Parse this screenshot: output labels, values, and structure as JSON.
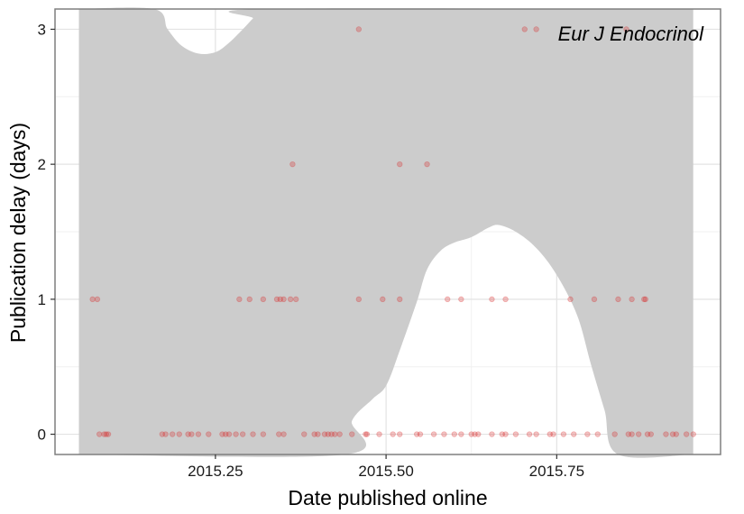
{
  "chart_data": {
    "type": "scatter",
    "title": "",
    "annotation": "Eur J Endocrinol",
    "xlabel": "Date published online",
    "ylabel": "Publication delay (days)",
    "xlim": [
      2015.015,
      2015.99
    ],
    "ylim": [
      -0.15,
      3.15
    ],
    "x_ticks": [
      2015.25,
      2015.5,
      2015.75
    ],
    "x_tick_labels": [
      "2015.25",
      "2015.50",
      "2015.75"
    ],
    "y_ticks": [
      0,
      1,
      2,
      3
    ],
    "y_tick_labels": [
      "0",
      "1",
      "2",
      "3"
    ],
    "grid": true,
    "point_color": "#d62728",
    "band_color": "#cccccc",
    "series": [
      {
        "points": [
          [
            2015.07,
            1
          ],
          [
            2015.077,
            1
          ],
          [
            2015.345,
            1
          ],
          [
            2015.285,
            1
          ],
          [
            2015.3,
            1
          ],
          [
            2015.32,
            1
          ],
          [
            2015.34,
            1
          ],
          [
            2015.35,
            1
          ],
          [
            2015.36,
            1
          ],
          [
            2015.368,
            1
          ],
          [
            2015.46,
            1
          ],
          [
            2015.495,
            1
          ],
          [
            2015.52,
            1
          ],
          [
            2015.59,
            1
          ],
          [
            2015.61,
            1
          ],
          [
            2015.655,
            1
          ],
          [
            2015.675,
            1
          ],
          [
            2015.77,
            1
          ],
          [
            2015.805,
            1
          ],
          [
            2015.84,
            1
          ],
          [
            2015.86,
            1
          ],
          [
            2015.878,
            1
          ],
          [
            2015.88,
            1
          ],
          [
            2015.363,
            2
          ],
          [
            2015.52,
            2
          ],
          [
            2015.56,
            2
          ],
          [
            2015.46,
            3
          ],
          [
            2015.703,
            3
          ],
          [
            2015.72,
            3
          ],
          [
            2015.852,
            3
          ],
          [
            2015.08,
            0
          ],
          [
            2015.087,
            0
          ],
          [
            2015.09,
            0
          ],
          [
            2015.093,
            0
          ],
          [
            2015.172,
            0
          ],
          [
            2015.177,
            0
          ],
          [
            2015.187,
            0
          ],
          [
            2015.197,
            0
          ],
          [
            2015.21,
            0
          ],
          [
            2015.215,
            0
          ],
          [
            2015.225,
            0
          ],
          [
            2015.24,
            0
          ],
          [
            2015.26,
            0
          ],
          [
            2015.265,
            0
          ],
          [
            2015.27,
            0
          ],
          [
            2015.28,
            0
          ],
          [
            2015.29,
            0
          ],
          [
            2015.305,
            0
          ],
          [
            2015.32,
            0
          ],
          [
            2015.343,
            0
          ],
          [
            2015.35,
            0
          ],
          [
            2015.38,
            0
          ],
          [
            2015.395,
            0
          ],
          [
            2015.4,
            0
          ],
          [
            2015.41,
            0
          ],
          [
            2015.415,
            0
          ],
          [
            2015.42,
            0
          ],
          [
            2015.425,
            0
          ],
          [
            2015.432,
            0
          ],
          [
            2015.45,
            0
          ],
          [
            2015.47,
            0
          ],
          [
            2015.472,
            0
          ],
          [
            2015.49,
            0
          ],
          [
            2015.51,
            0
          ],
          [
            2015.52,
            0
          ],
          [
            2015.545,
            0
          ],
          [
            2015.55,
            0
          ],
          [
            2015.57,
            0
          ],
          [
            2015.585,
            0
          ],
          [
            2015.6,
            0
          ],
          [
            2015.61,
            0
          ],
          [
            2015.625,
            0
          ],
          [
            2015.63,
            0
          ],
          [
            2015.635,
            0
          ],
          [
            2015.655,
            0
          ],
          [
            2015.67,
            0
          ],
          [
            2015.675,
            0
          ],
          [
            2015.69,
            0
          ],
          [
            2015.71,
            0
          ],
          [
            2015.72,
            0
          ],
          [
            2015.74,
            0
          ],
          [
            2015.745,
            0
          ],
          [
            2015.76,
            0
          ],
          [
            2015.775,
            0
          ],
          [
            2015.795,
            0
          ],
          [
            2015.81,
            0
          ],
          [
            2015.835,
            0
          ],
          [
            2015.855,
            0
          ],
          [
            2015.86,
            0
          ],
          [
            2015.87,
            0
          ],
          [
            2015.883,
            0
          ],
          [
            2015.888,
            0
          ],
          [
            2015.91,
            0
          ],
          [
            2015.92,
            0
          ],
          [
            2015.925,
            0
          ],
          [
            2015.94,
            0
          ],
          [
            2015.95,
            0
          ]
        ]
      }
    ],
    "band": {
      "x_range": [
        2015.05,
        2015.95
      ],
      "lower": [
        [
          2015.05,
          -0.15
        ],
        [
          2015.44,
          -0.15
        ],
        [
          2015.45,
          0.1
        ],
        [
          2015.48,
          0.26
        ],
        [
          2015.5,
          0.36
        ],
        [
          2015.52,
          0.62
        ],
        [
          2015.545,
          0.98
        ],
        [
          2015.56,
          1.22
        ],
        [
          2015.58,
          1.36
        ],
        [
          2015.6,
          1.42
        ],
        [
          2015.625,
          1.46
        ],
        [
          2015.65,
          1.53
        ],
        [
          2015.665,
          1.55
        ],
        [
          2015.69,
          1.5
        ],
        [
          2015.72,
          1.38
        ],
        [
          2015.75,
          1.18
        ],
        [
          2015.78,
          0.88
        ],
        [
          2015.8,
          0.52
        ],
        [
          2015.82,
          0.18
        ],
        [
          2015.84,
          -0.15
        ],
        [
          2015.95,
          -0.15
        ]
      ],
      "upper": [
        [
          2015.05,
          3.15
        ],
        [
          2015.16,
          3.15
        ],
        [
          2015.18,
          3.0
        ],
        [
          2015.2,
          2.88
        ],
        [
          2015.225,
          2.82
        ],
        [
          2015.25,
          2.83
        ],
        [
          2015.27,
          2.9
        ],
        [
          2015.29,
          3.0
        ],
        [
          2015.305,
          3.08
        ],
        [
          2015.32,
          3.15
        ],
        [
          2015.95,
          3.15
        ]
      ]
    }
  }
}
